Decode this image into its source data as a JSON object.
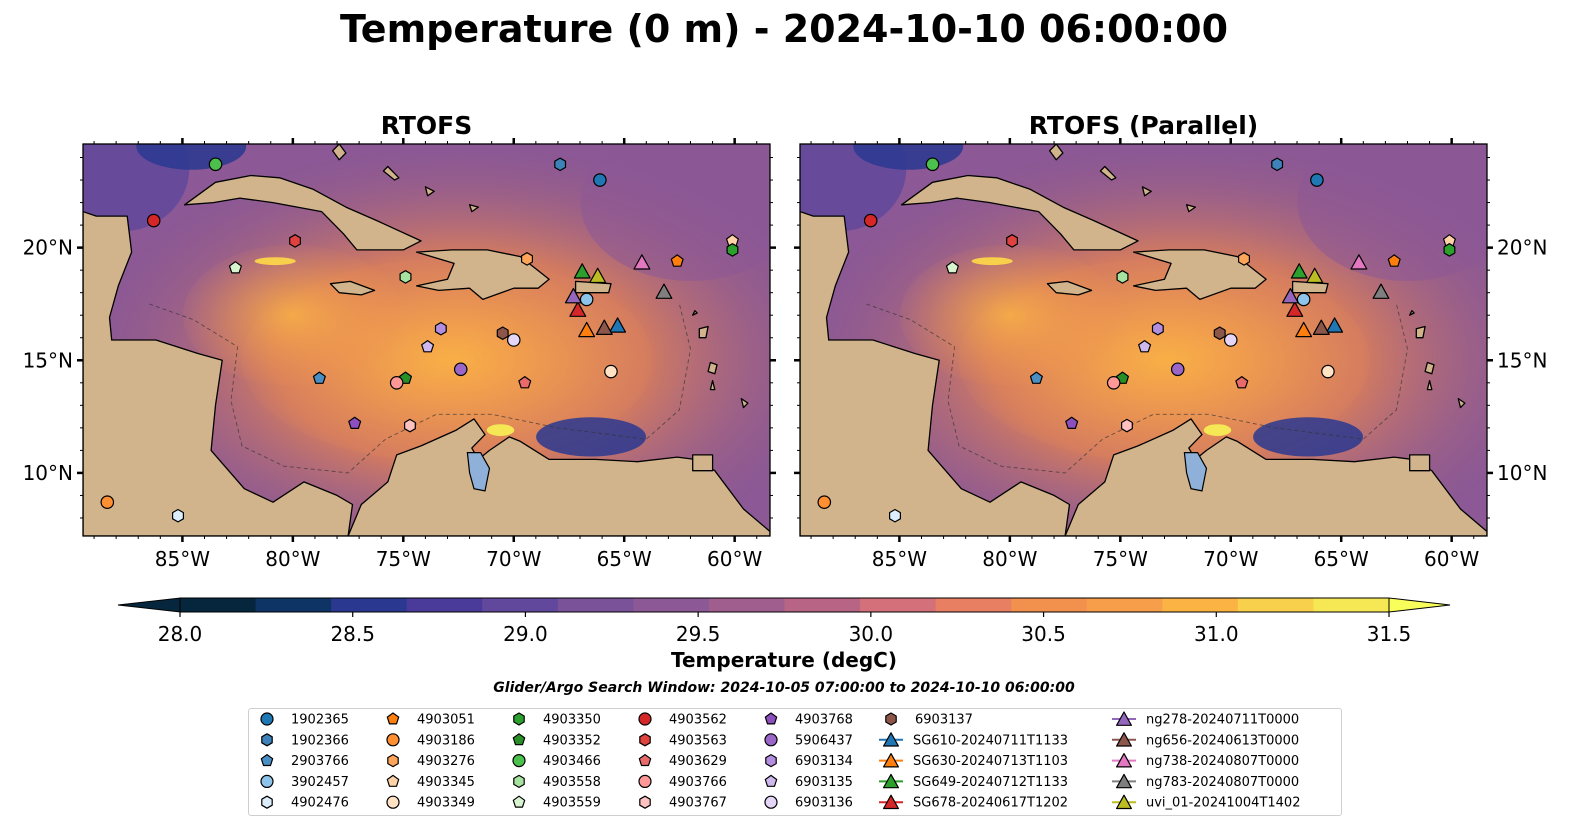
{
  "figure": {
    "title": "Temperature (0 m) - 2024-10-10 06:00:00",
    "window_text": "Glider/Argo Search Window: 2024-10-05 07:00:00 to 2024-10-10 06:00:00"
  },
  "chart_data": [
    {
      "type": "heatmap",
      "title": "RTOFS",
      "xlim": [
        -89.5,
        -58.4
      ],
      "ylim": [
        7.2,
        24.6
      ],
      "xticks": [
        -85,
        -80,
        -75,
        -70,
        -65,
        -60
      ],
      "xtick_labels": [
        "85°W",
        "80°W",
        "75°W",
        "70°W",
        "65°W",
        "60°W"
      ],
      "yticks": [
        10,
        15,
        20
      ],
      "ytick_labels": [
        "10°N",
        "15°N",
        "20°N"
      ],
      "ytick_side": "left"
    },
    {
      "type": "heatmap",
      "title": "RTOFS (Parallel)",
      "xlim": [
        -89.5,
        -58.4
      ],
      "ylim": [
        7.2,
        24.6
      ],
      "xticks": [
        -85,
        -80,
        -75,
        -70,
        -65,
        -60
      ],
      "xtick_labels": [
        "85°W",
        "80°W",
        "75°W",
        "70°W",
        "65°W",
        "60°W"
      ],
      "yticks": [
        10,
        15,
        20
      ],
      "ytick_labels": [
        "10°N",
        "15°N",
        "20°N"
      ],
      "ytick_side": "right"
    }
  ],
  "colorbar": {
    "label": "Temperature (degC)",
    "vmin": 28.0,
    "vmax": 31.5,
    "ticks": [
      28.0,
      28.5,
      29.0,
      29.5,
      30.0,
      30.5,
      31.0,
      31.5
    ],
    "tick_labels": [
      "28.0",
      "28.5",
      "29.0",
      "29.5",
      "30.0",
      "30.5",
      "31.0",
      "31.5"
    ],
    "colors": [
      "#05263c",
      "#0e3466",
      "#2a3890",
      "#4a3b9a",
      "#62489c",
      "#7a5299",
      "#8c5896",
      "#a05e8e",
      "#b86484",
      "#d3707a",
      "#e87e62",
      "#f2904e",
      "#f69e4a",
      "#fbb444",
      "#f9d04c",
      "#f6e855"
    ],
    "extend": "both"
  },
  "land_color": "#d2b48c",
  "lake_color": "#8fb0d8",
  "observations": [
    {
      "name": "1902365",
      "marker": "circle",
      "color": "#1f77b4",
      "lon": -66.1,
      "lat": 23.0
    },
    {
      "name": "1902366",
      "marker": "hexagon",
      "color": "#3d82b8",
      "lon": -67.9,
      "lat": 23.7
    },
    {
      "name": "2903766",
      "marker": "pentagon",
      "color": "#4a8fc4",
      "lon": -78.8,
      "lat": 14.2
    },
    {
      "name": "3902457",
      "marker": "circle",
      "color": "#8ec4ea",
      "lon": -66.7,
      "lat": 17.7
    },
    {
      "name": "4902476",
      "marker": "hexagon",
      "color": "#dceefb",
      "lon": -85.2,
      "lat": 8.1
    },
    {
      "name": "4903051",
      "marker": "pentagon",
      "color": "#ff7f0e",
      "lon": -62.6,
      "lat": 19.4
    },
    {
      "name": "4903186",
      "marker": "circle",
      "color": "#ff8f30",
      "lon": -88.4,
      "lat": 8.7
    },
    {
      "name": "4903276",
      "marker": "hexagon",
      "color": "#ffa55a",
      "lon": -69.4,
      "lat": 19.5
    },
    {
      "name": "4903345",
      "marker": "pentagon",
      "color": "#ffd2a8",
      "lon": -60.1,
      "lat": 20.3
    },
    {
      "name": "4903349",
      "marker": "circle",
      "color": "#ffe3c4",
      "lon": -65.6,
      "lat": 14.5
    },
    {
      "name": "4903350",
      "marker": "hexagon",
      "color": "#2ca02c",
      "lon": -60.1,
      "lat": 19.9
    },
    {
      "name": "4903352",
      "marker": "pentagon",
      "color": "#279127",
      "lon": -74.9,
      "lat": 14.2
    },
    {
      "name": "4903466",
      "marker": "circle",
      "color": "#4cc04c",
      "lon": -83.5,
      "lat": 23.7
    },
    {
      "name": "4903558",
      "marker": "hexagon",
      "color": "#a7e3a0",
      "lon": -74.9,
      "lat": 18.7
    },
    {
      "name": "4903559",
      "marker": "pentagon",
      "color": "#d8f5d0",
      "lon": -82.6,
      "lat": 19.1
    },
    {
      "name": "4903562",
      "marker": "circle",
      "color": "#d62728",
      "lon": -86.3,
      "lat": 21.2
    },
    {
      "name": "4903563",
      "marker": "hexagon",
      "color": "#e0423f",
      "lon": -79.9,
      "lat": 20.3
    },
    {
      "name": "4903629",
      "marker": "pentagon",
      "color": "#e86a6a",
      "lon": -69.5,
      "lat": 14.0
    },
    {
      "name": "4903766",
      "marker": "circle",
      "color": "#ff9896",
      "lon": -75.3,
      "lat": 14.0
    },
    {
      "name": "4903767",
      "marker": "hexagon",
      "color": "#ffc0c0",
      "lon": -74.7,
      "lat": 12.1
    },
    {
      "name": "4903768",
      "marker": "pentagon",
      "color": "#8c4fbd",
      "lon": -77.2,
      "lat": 12.2
    },
    {
      "name": "5906437",
      "marker": "circle",
      "color": "#9b66c8",
      "lon": -72.4,
      "lat": 14.6
    },
    {
      "name": "6903134",
      "marker": "hexagon",
      "color": "#b38ee0",
      "lon": -73.3,
      "lat": 16.4
    },
    {
      "name": "6903135",
      "marker": "pentagon",
      "color": "#cfb8ee",
      "lon": -73.9,
      "lat": 15.6
    },
    {
      "name": "6903136",
      "marker": "circle",
      "color": "#e5d6f7",
      "lon": -70.0,
      "lat": 15.9
    },
    {
      "name": "6903137",
      "marker": "hexagon",
      "color": "#8c564b",
      "lon": -70.5,
      "lat": 16.2
    },
    {
      "name": "SG610-20240711T1133",
      "marker": "triangle",
      "color": "#1f77b4",
      "lon": -65.3,
      "lat": 16.5
    },
    {
      "name": "SG630-20240713T1103",
      "marker": "triangle",
      "color": "#ff7f0e",
      "lon": -66.7,
      "lat": 16.3
    },
    {
      "name": "SG649-20240712T1133",
      "marker": "triangle",
      "color": "#2ca02c",
      "lon": -66.9,
      "lat": 18.9
    },
    {
      "name": "SG678-20240617T1202",
      "marker": "triangle",
      "color": "#d62728",
      "lon": -67.1,
      "lat": 17.2
    },
    {
      "name": "ng278-20240711T0000",
      "marker": "triangle",
      "color": "#9467bd",
      "lon": -67.3,
      "lat": 17.8
    },
    {
      "name": "ng656-20240613T0000",
      "marker": "triangle",
      "color": "#8c564b",
      "lon": -65.9,
      "lat": 16.4
    },
    {
      "name": "ng738-20240807T0000",
      "marker": "triangle",
      "color": "#e377c2",
      "lon": -64.2,
      "lat": 19.3
    },
    {
      "name": "ng783-20240807T0000",
      "marker": "triangle",
      "color": "#7f7f7f",
      "lon": -63.2,
      "lat": 18.0
    },
    {
      "name": "uvi_01-20241004T1402",
      "marker": "triangle",
      "color": "#bcbd22",
      "lon": -66.2,
      "lat": 18.7
    }
  ]
}
